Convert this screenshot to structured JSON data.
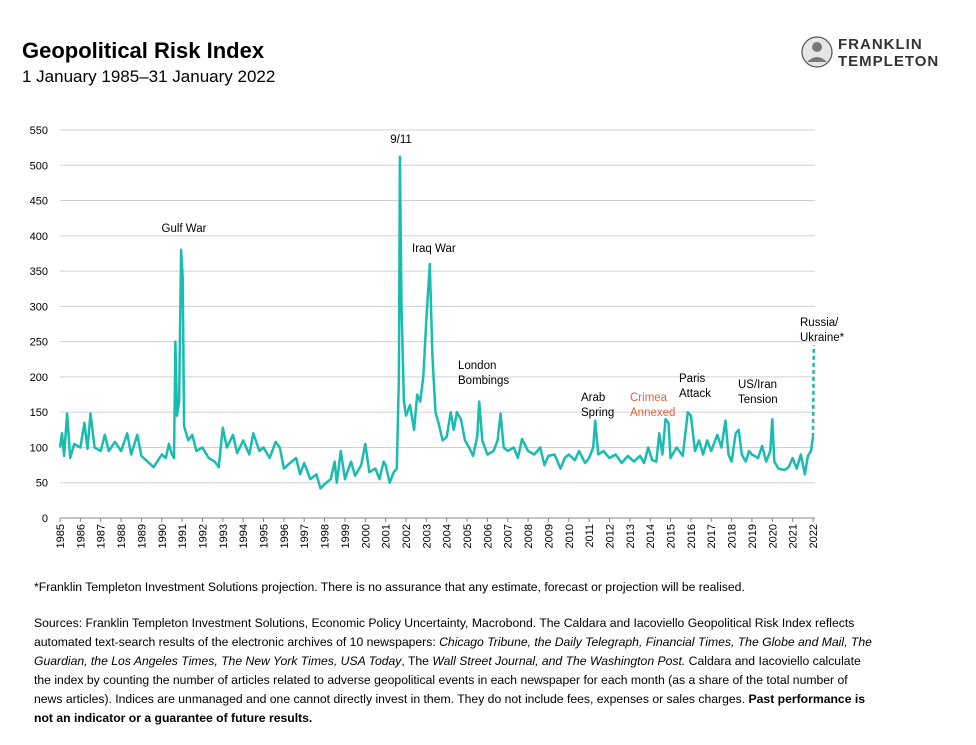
{
  "chart_data": {
    "type": "line",
    "title": "Geopolitical Risk Index",
    "subtitle": "1 January 1985–31 January 2022",
    "brand": [
      "FRANKLIN",
      "TEMPLETON"
    ],
    "xlim": [
      1985,
      2022.05
    ],
    "xticks": [
      1985,
      1986,
      1987,
      1988,
      1989,
      1990,
      1991,
      1992,
      1993,
      1994,
      1995,
      1996,
      1997,
      1998,
      1999,
      2000,
      2001,
      2002,
      2003,
      2004,
      2005,
      2006,
      2007,
      2008,
      2009,
      2010,
      2011,
      2012,
      2013,
      2014,
      2015,
      2016,
      2017,
      2018,
      2019,
      2020,
      2021,
      2022
    ],
    "ylim": [
      0,
      550
    ],
    "yticks": [
      0,
      50,
      100,
      150,
      200,
      250,
      300,
      350,
      400,
      450,
      500,
      550
    ],
    "grid": true,
    "series": [
      {
        "color": "#1bbcb0",
        "dashed": false,
        "x": [
          1985.0,
          1985.1,
          1985.2,
          1985.35,
          1985.5,
          1985.7,
          1986.0,
          1986.2,
          1986.35,
          1986.5,
          1986.7,
          1987.0,
          1987.2,
          1987.4,
          1987.7,
          1988.0,
          1988.3,
          1988.5,
          1988.8,
          1989.0,
          1989.3,
          1989.6,
          1990.0,
          1990.2,
          1990.35,
          1990.5,
          1990.6,
          1990.67,
          1990.75,
          1990.85,
          1990.95,
          1991.03,
          1991.1,
          1991.3,
          1991.5,
          1991.7,
          1992.0,
          1992.3,
          1992.6,
          1992.8,
          1993.0,
          1993.2,
          1993.5,
          1993.7,
          1994.0,
          1994.3,
          1994.5,
          1994.8,
          1995.0,
          1995.3,
          1995.6,
          1995.8,
          1996.0,
          1996.3,
          1996.6,
          1996.8,
          1997.0,
          1997.3,
          1997.6,
          1997.8,
          1998.0,
          1998.3,
          1998.5,
          1998.6,
          1998.8,
          1999.0,
          1999.3,
          1999.5,
          1999.8,
          2000.0,
          2000.2,
          2000.5,
          2000.7,
          2000.9,
          2001.0,
          2001.2,
          2001.4,
          2001.55,
          2001.65,
          2001.7,
          2001.78,
          2001.9,
          2002.0,
          2002.2,
          2002.4,
          2002.55,
          2002.7,
          2002.85,
          2003.0,
          2003.17,
          2003.3,
          2003.45,
          2003.6,
          2003.8,
          2004.0,
          2004.2,
          2004.35,
          2004.5,
          2004.7,
          2004.9,
          2005.1,
          2005.3,
          2005.5,
          2005.6,
          2005.75,
          2006.0,
          2006.3,
          2006.5,
          2006.65,
          2006.8,
          2007.0,
          2007.3,
          2007.5,
          2007.7,
          2008.0,
          2008.3,
          2008.6,
          2008.8,
          2009.0,
          2009.3,
          2009.6,
          2009.8,
          2010.0,
          2010.3,
          2010.5,
          2010.8,
          2011.0,
          2011.2,
          2011.3,
          2011.45,
          2011.7,
          2012.0,
          2012.3,
          2012.6,
          2012.9,
          2013.2,
          2013.5,
          2013.7,
          2013.9,
          2014.1,
          2014.3,
          2014.45,
          2014.6,
          2014.75,
          2014.9,
          2015.0,
          2015.3,
          2015.6,
          2015.85,
          2016.0,
          2016.2,
          2016.4,
          2016.6,
          2016.8,
          2017.0,
          2017.3,
          2017.5,
          2017.7,
          2017.85,
          2018.0,
          2018.2,
          2018.35,
          2018.5,
          2018.7,
          2018.85,
          2019.0,
          2019.3,
          2019.5,
          2019.7,
          2019.9,
          2020.0,
          2020.1,
          2020.3,
          2020.6,
          2020.8,
          2021.0,
          2021.2,
          2021.4,
          2021.6,
          2021.75,
          2021.9,
          2022.0
        ],
        "values": [
          100,
          120,
          88,
          148,
          85,
          105,
          100,
          135,
          98,
          148,
          100,
          95,
          118,
          95,
          108,
          95,
          120,
          90,
          118,
          88,
          80,
          72,
          90,
          85,
          105,
          90,
          85,
          250,
          145,
          165,
          380,
          340,
          130,
          110,
          118,
          95,
          100,
          85,
          80,
          72,
          128,
          100,
          118,
          92,
          110,
          90,
          120,
          95,
          100,
          85,
          108,
          100,
          70,
          78,
          85,
          62,
          78,
          55,
          62,
          42,
          48,
          55,
          80,
          50,
          95,
          55,
          80,
          60,
          75,
          105,
          65,
          70,
          55,
          80,
          75,
          50,
          65,
          70,
          200,
          512,
          300,
          165,
          145,
          160,
          125,
          175,
          165,
          200,
          280,
          360,
          230,
          150,
          135,
          110,
          115,
          150,
          125,
          150,
          140,
          110,
          100,
          88,
          115,
          165,
          110,
          90,
          95,
          110,
          148,
          100,
          95,
          100,
          85,
          112,
          95,
          90,
          100,
          75,
          88,
          90,
          70,
          85,
          90,
          82,
          95,
          78,
          85,
          100,
          138,
          90,
          95,
          85,
          90,
          78,
          88,
          80,
          88,
          78,
          100,
          82,
          80,
          120,
          90,
          140,
          135,
          85,
          100,
          88,
          150,
          145,
          95,
          110,
          90,
          110,
          95,
          118,
          100,
          138,
          90,
          80,
          120,
          125,
          90,
          80,
          95,
          90,
          85,
          102,
          80,
          95,
          140,
          80,
          70,
          68,
          72,
          85,
          70,
          90,
          62,
          88,
          95,
          115
        ]
      },
      {
        "color": "#1bbcb0",
        "dashed": true,
        "x": [
          2022.0,
          2022.04
        ],
        "values": [
          115,
          245
        ]
      }
    ],
    "annotations": [
      {
        "lines": [
          "Gulf War"
        ]
      },
      {
        "lines": [
          "9/11"
        ]
      },
      {
        "lines": [
          "Iraq War"
        ]
      },
      {
        "lines": [
          "London",
          "Bombings"
        ]
      },
      {
        "lines": [
          "Arab",
          "Spring"
        ]
      },
      {
        "lines": [
          "Crimea",
          "Annexed"
        ],
        "color": "#e8623a"
      },
      {
        "lines": [
          "Paris",
          "Attack"
        ]
      },
      {
        "lines": [
          "US/Iran",
          "Tension"
        ]
      },
      {
        "lines": [
          "Russia/",
          "Ukraine*"
        ]
      }
    ],
    "footnote": "*Franklin Templeton Investment Solutions projection. There is no assurance that any estimate, forecast or projection will be realised.",
    "sources": [
      "Sources: Franklin Templeton Investment Solutions, Economic Policy Uncertainty, Macrobond. The Caldara and Iacoviello Geopolitical Risk Index reflects automated text-search results of the electronic archives of 10 newspapers: ",
      "Chicago Tribune, the Daily Telegraph, Financial Times, The Globe and Mail, The Guardian, the Los Angeles Times, The New York Times, USA Today",
      ", The ",
      "Wall Street Journal, and The Washington Post.",
      " Caldara and Iacoviello calculate the index by counting the number of articles related to adverse geopolitical events in each newspaper for each month (as a share of the total number of news articles). Indices are unmanaged and one cannot directly invest in them. They do not include fees, expenses or sales charges. ",
      "Past performance is not an indicator or a guarantee of future results."
    ]
  }
}
